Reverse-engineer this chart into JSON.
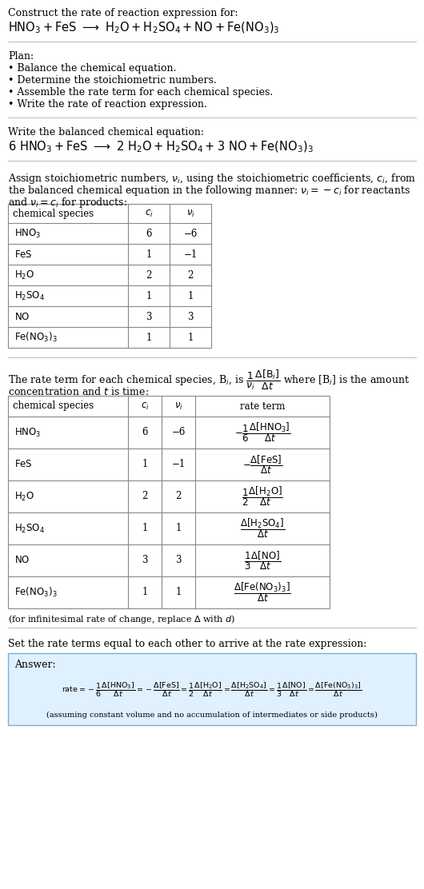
{
  "bg_color": "#ffffff",
  "text_color": "#000000",
  "title_line1": "Construct the rate of reaction expression for:",
  "plan_title": "Plan:",
  "plan_items": [
    "• Balance the chemical equation.",
    "• Determine the stoichiometric numbers.",
    "• Assemble the rate term for each chemical species.",
    "• Write the rate of reaction expression."
  ],
  "balanced_label": "Write the balanced chemical equation:",
  "stoich_assign_text1": "Assign stoichiometric numbers, $\\nu_i$, using the stoichiometric coefficients, $c_i$, from",
  "stoich_assign_text2": "the balanced chemical equation in the following manner: $\\nu_i = -c_i$ for reactants",
  "stoich_assign_text3": "and $\\nu_i = c_i$ for products:",
  "table1_headers": [
    "chemical species",
    "ci",
    "vi"
  ],
  "table1_rows": [
    [
      "HNO3",
      "6",
      "−6"
    ],
    [
      "FeS",
      "1",
      "−1"
    ],
    [
      "H2O",
      "2",
      "2"
    ],
    [
      "H2SO4",
      "1",
      "1"
    ],
    [
      "NO",
      "3",
      "3"
    ],
    [
      "FeNO3_3",
      "1",
      "1"
    ]
  ],
  "rate_term_text2": "concentration and $t$ is time:",
  "table2_headers": [
    "chemical species",
    "ci",
    "vi",
    "rate term"
  ],
  "table2_rows": [
    [
      "HNO3",
      "6",
      "−6",
      "r1"
    ],
    [
      "FeS",
      "1",
      "−1",
      "r2"
    ],
    [
      "H2O",
      "2",
      "2",
      "r3"
    ],
    [
      "H2SO4",
      "1",
      "1",
      "r4"
    ],
    [
      "NO",
      "3",
      "3",
      "r5"
    ],
    [
      "FeNO3_3",
      "1",
      "1",
      "r6"
    ]
  ],
  "set_rate_text": "Set the rate terms equal to each other to arrive at the rate expression:",
  "answer_box_color": "#dff0ff",
  "answer_border_color": "#7ab0d4"
}
